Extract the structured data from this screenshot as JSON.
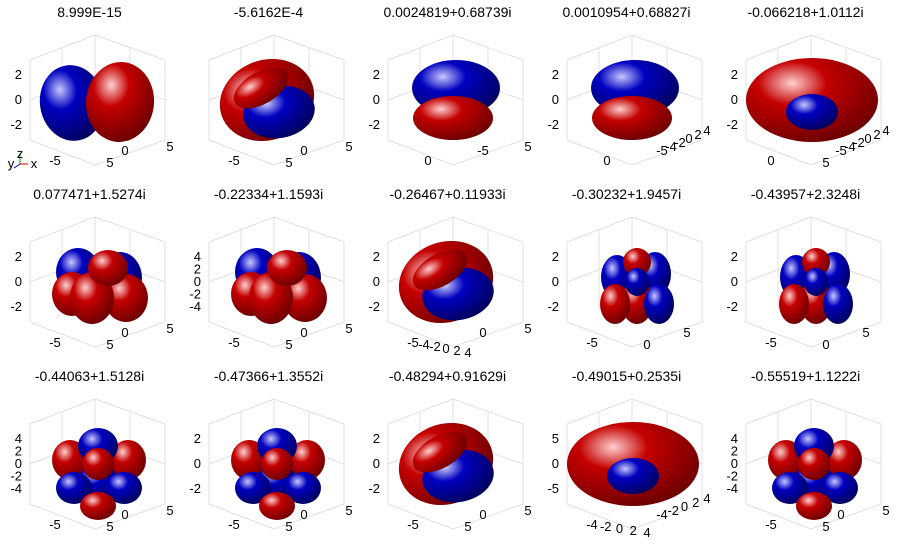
{
  "chart_data": [
    {
      "type": "isosurface",
      "title": "8.999E-15",
      "z_ticks": [
        "2",
        "0",
        "-2"
      ],
      "x_ticks": [
        "-5",
        "5"
      ],
      "y_ticks": [
        "0",
        "5"
      ],
      "lobes": "two-lobe",
      "axis_triad": [
        "y",
        "z",
        "x"
      ]
    },
    {
      "type": "isosurface",
      "title": "-5.6162E-4",
      "z_ticks": [],
      "x_ticks": [
        "-5",
        "5"
      ],
      "y_ticks": [
        "0",
        "5"
      ],
      "lobes": "crescent"
    },
    {
      "type": "isosurface",
      "title": "0.0024819+0.68739i",
      "z_ticks": [
        "2",
        "0",
        "-2"
      ],
      "x_ticks": [
        "0"
      ],
      "y_ticks": [
        "-5",
        "5"
      ],
      "lobes": "stacked"
    },
    {
      "type": "isosurface",
      "title": "0.0010954+0.68827i",
      "z_ticks": [
        "2",
        "0",
        "-2"
      ],
      "x_ticks": [
        "0"
      ],
      "y_ticks": [
        "-5",
        "-4",
        "-2",
        "0",
        "2",
        "4"
      ],
      "lobes": "stacked"
    },
    {
      "type": "isosurface",
      "title": "-0.066218+1.0112i",
      "z_ticks": [
        "2",
        "0",
        "-2"
      ],
      "x_ticks": [
        "0",
        "5"
      ],
      "y_ticks": [
        "-5",
        "-4",
        "-2",
        "0",
        "2",
        "4"
      ],
      "lobes": "torus"
    },
    {
      "type": "isosurface",
      "title": "0.077471+1.5274i",
      "z_ticks": [
        "2",
        "0",
        "-2"
      ],
      "x_ticks": [
        "-5",
        "5"
      ],
      "y_ticks": [
        "0",
        "5"
      ],
      "lobes": "four-lobe"
    },
    {
      "type": "isosurface",
      "title": "-0.22334+1.1593i",
      "z_ticks": [
        "4",
        "2",
        "0",
        "-2",
        "-4"
      ],
      "x_ticks": [
        "-5",
        "5"
      ],
      "y_ticks": [
        "0",
        "5"
      ],
      "lobes": "four-lobe"
    },
    {
      "type": "isosurface",
      "title": "-0.26467+0.11933i",
      "z_ticks": [
        "2",
        "0",
        "-2"
      ],
      "x_ticks": [
        "-5",
        "-4",
        "-2",
        "0",
        "2",
        "4"
      ],
      "y_ticks": [
        "0",
        "5"
      ],
      "lobes": "crescent"
    },
    {
      "type": "isosurface",
      "title": "-0.30232+1.9457i",
      "z_ticks": [
        "2",
        "0",
        "-2"
      ],
      "x_ticks": [
        "-5",
        "0"
      ],
      "y_ticks": [
        "5"
      ],
      "lobes": "six-lobe"
    },
    {
      "type": "isosurface",
      "title": "-0.43957+2.3248i",
      "z_ticks": [
        "2",
        "0",
        "-2"
      ],
      "x_ticks": [
        "-5",
        "0"
      ],
      "y_ticks": [
        "5"
      ],
      "lobes": "six-lobe"
    },
    {
      "type": "isosurface",
      "title": "-0.44063+1.5128i",
      "z_ticks": [
        "4",
        "2",
        "0",
        "-2",
        "-4"
      ],
      "x_ticks": [
        "-5",
        "5"
      ],
      "y_ticks": [
        "0",
        "5"
      ],
      "lobes": "eight-lobe"
    },
    {
      "type": "isosurface",
      "title": "-0.47366+1.3552i",
      "z_ticks": [
        "2",
        "0",
        "-2"
      ],
      "x_ticks": [
        "-5",
        "5"
      ],
      "y_ticks": [
        "0",
        "5"
      ],
      "lobes": "eight-lobe"
    },
    {
      "type": "isosurface",
      "title": "-0.48294+0.91629i",
      "z_ticks": [
        "2",
        "0",
        "-2"
      ],
      "x_ticks": [
        "-5",
        "5"
      ],
      "y_ticks": [
        "0",
        "5"
      ],
      "lobes": "crescent"
    },
    {
      "type": "isosurface",
      "title": "-0.49015+0.2535i",
      "z_ticks": [
        "5",
        "0",
        "-5"
      ],
      "x_ticks": [
        "-4",
        "-2",
        "0",
        "2",
        "4"
      ],
      "y_ticks": [
        "-4",
        "-2",
        "0",
        "2",
        "4"
      ],
      "lobes": "torus"
    },
    {
      "type": "isosurface",
      "title": "-0.55519+1.1222i",
      "z_ticks": [
        "4",
        "2",
        "0",
        "-2",
        "-4"
      ],
      "x_ticks": [
        "-5",
        "5"
      ],
      "y_ticks": [
        "0",
        "5"
      ],
      "lobes": "eight-lobe"
    }
  ],
  "colors": {
    "positive": "#b00000",
    "negative": "#0000a0",
    "grid": "#d9d9d9",
    "text": "#000000"
  }
}
